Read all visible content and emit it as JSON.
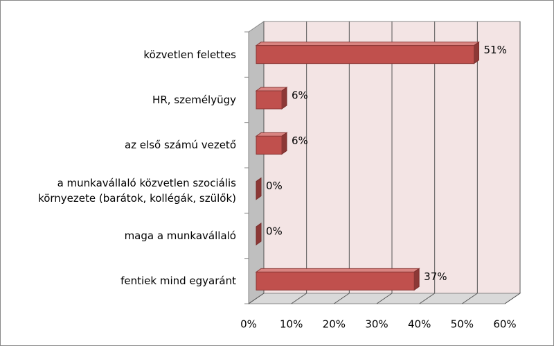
{
  "chart_data": {
    "type": "bar",
    "orientation": "horizontal",
    "categories": [
      "közvetlen felettes",
      "HR, személyügy",
      "az első számú vezető",
      "a munkavállaló közvetlen szociális környezete (barátok, kollégák, szülők)",
      "maga a munkavállaló",
      "fentiek mind egyaránt"
    ],
    "values": [
      51,
      6,
      6,
      0,
      0,
      37
    ],
    "value_labels": [
      "51%",
      "6%",
      "6%",
      "0%",
      "0%",
      "37%"
    ],
    "color": "#c0504d",
    "xlim": [
      0,
      60
    ],
    "xticks": [
      {
        "value": 0,
        "label": "0%"
      },
      {
        "value": 10,
        "label": "10%"
      },
      {
        "value": 20,
        "label": "20%"
      },
      {
        "value": 30,
        "label": "30%"
      },
      {
        "value": 40,
        "label": "40%"
      },
      {
        "value": 50,
        "label": "50%"
      },
      {
        "value": 60,
        "label": "60%"
      }
    ],
    "grid": true
  }
}
